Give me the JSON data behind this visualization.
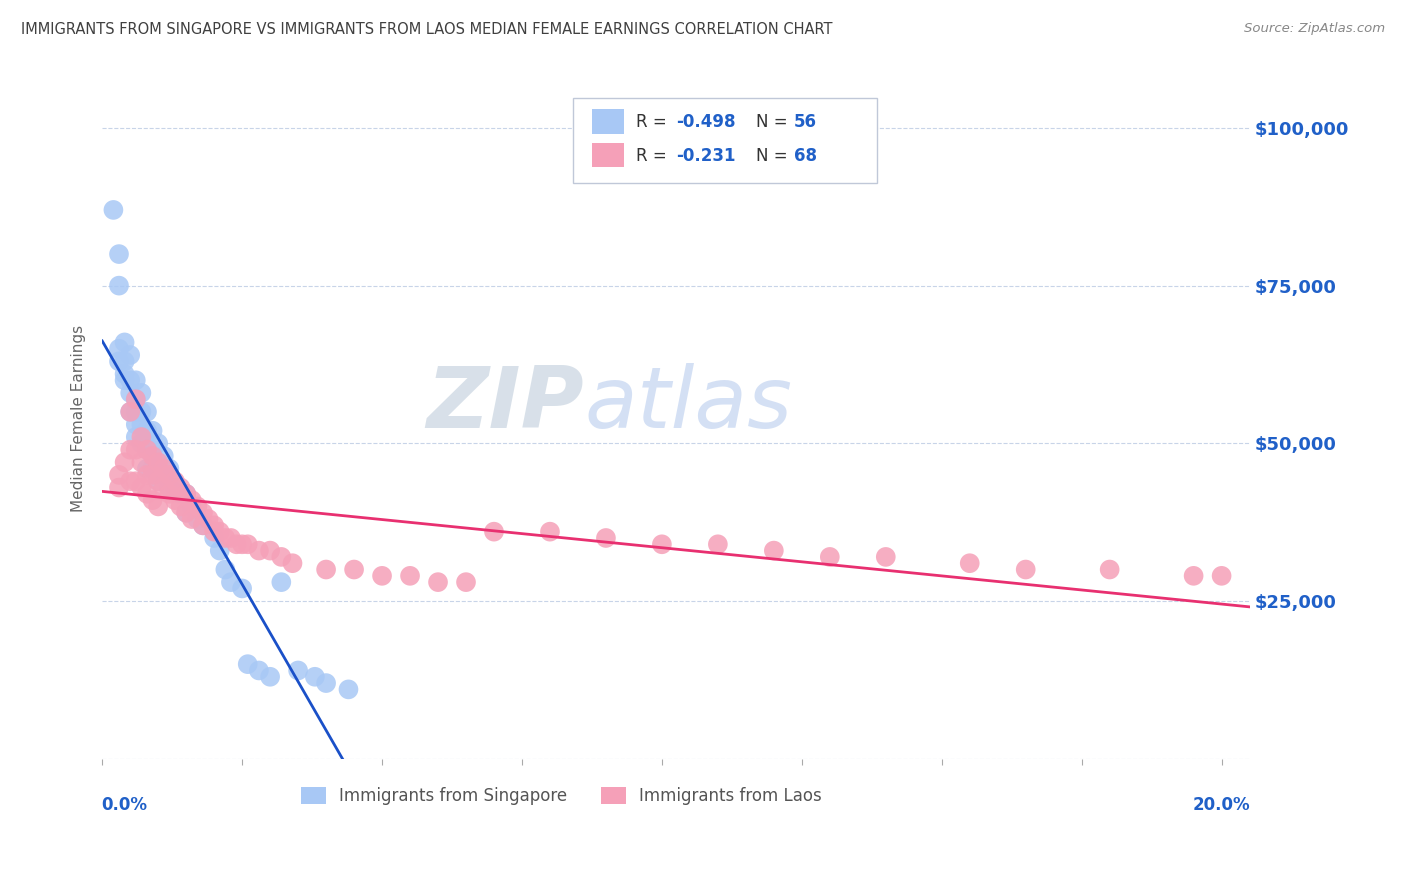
{
  "title": "IMMIGRANTS FROM SINGAPORE VS IMMIGRANTS FROM LAOS MEDIAN FEMALE EARNINGS CORRELATION CHART",
  "source": "Source: ZipAtlas.com",
  "ylabel": "Median Female Earnings",
  "yticks": [
    0,
    25000,
    50000,
    75000,
    100000
  ],
  "ytick_labels": [
    "",
    "$25,000",
    "$50,000",
    "$75,000",
    "$100,000"
  ],
  "xlim": [
    0.0,
    0.205
  ],
  "ylim": [
    0,
    108000
  ],
  "watermark_zip": "ZIP",
  "watermark_atlas": "atlas",
  "singapore_color": "#a8c8f5",
  "laos_color": "#f5a0b8",
  "singapore_line_color": "#1a50c8",
  "laos_line_color": "#e83070",
  "background_color": "#ffffff",
  "grid_color": "#c8d4e8",
  "title_color": "#404040",
  "right_axis_color": "#2060c8",
  "sg_x": [
    0.002,
    0.003,
    0.003,
    0.003,
    0.003,
    0.004,
    0.004,
    0.004,
    0.004,
    0.005,
    0.005,
    0.005,
    0.005,
    0.006,
    0.006,
    0.006,
    0.006,
    0.006,
    0.007,
    0.007,
    0.007,
    0.007,
    0.008,
    0.008,
    0.008,
    0.008,
    0.009,
    0.009,
    0.009,
    0.01,
    0.01,
    0.01,
    0.011,
    0.011,
    0.012,
    0.012,
    0.013,
    0.014,
    0.015,
    0.015,
    0.016,
    0.017,
    0.018,
    0.02,
    0.021,
    0.022,
    0.023,
    0.025,
    0.026,
    0.028,
    0.03,
    0.032,
    0.035,
    0.038,
    0.04,
    0.044
  ],
  "sg_y": [
    87000,
    80000,
    65000,
    63000,
    75000,
    66000,
    63000,
    61000,
    60000,
    64000,
    60000,
    58000,
    55000,
    60000,
    57000,
    55000,
    53000,
    51000,
    58000,
    55000,
    53000,
    50000,
    55000,
    52000,
    49000,
    46000,
    52000,
    49000,
    46000,
    50000,
    47000,
    44000,
    48000,
    45000,
    46000,
    43000,
    43000,
    42000,
    42000,
    39000,
    40000,
    38000,
    37000,
    35000,
    33000,
    30000,
    28000,
    27000,
    15000,
    14000,
    13000,
    28000,
    14000,
    13000,
    12000,
    11000
  ],
  "la_x": [
    0.003,
    0.003,
    0.004,
    0.005,
    0.005,
    0.005,
    0.006,
    0.006,
    0.006,
    0.007,
    0.007,
    0.007,
    0.008,
    0.008,
    0.008,
    0.009,
    0.009,
    0.009,
    0.01,
    0.01,
    0.01,
    0.011,
    0.011,
    0.012,
    0.012,
    0.013,
    0.013,
    0.014,
    0.014,
    0.015,
    0.015,
    0.016,
    0.016,
    0.017,
    0.018,
    0.018,
    0.019,
    0.02,
    0.02,
    0.021,
    0.022,
    0.023,
    0.024,
    0.025,
    0.026,
    0.028,
    0.03,
    0.032,
    0.034,
    0.04,
    0.045,
    0.05,
    0.055,
    0.06,
    0.065,
    0.07,
    0.08,
    0.09,
    0.1,
    0.11,
    0.12,
    0.13,
    0.14,
    0.155,
    0.165,
    0.18,
    0.195,
    0.2
  ],
  "la_y": [
    43000,
    45000,
    47000,
    55000,
    49000,
    44000,
    57000,
    49000,
    44000,
    51000,
    47000,
    43000,
    49000,
    45000,
    42000,
    48000,
    45000,
    41000,
    47000,
    44000,
    40000,
    46000,
    43000,
    45000,
    42000,
    44000,
    41000,
    43000,
    40000,
    42000,
    39000,
    41000,
    38000,
    40000,
    39000,
    37000,
    38000,
    37000,
    36000,
    36000,
    35000,
    35000,
    34000,
    34000,
    34000,
    33000,
    33000,
    32000,
    31000,
    30000,
    30000,
    29000,
    29000,
    28000,
    28000,
    36000,
    36000,
    35000,
    34000,
    34000,
    33000,
    32000,
    32000,
    31000,
    30000,
    30000,
    29000,
    29000
  ]
}
